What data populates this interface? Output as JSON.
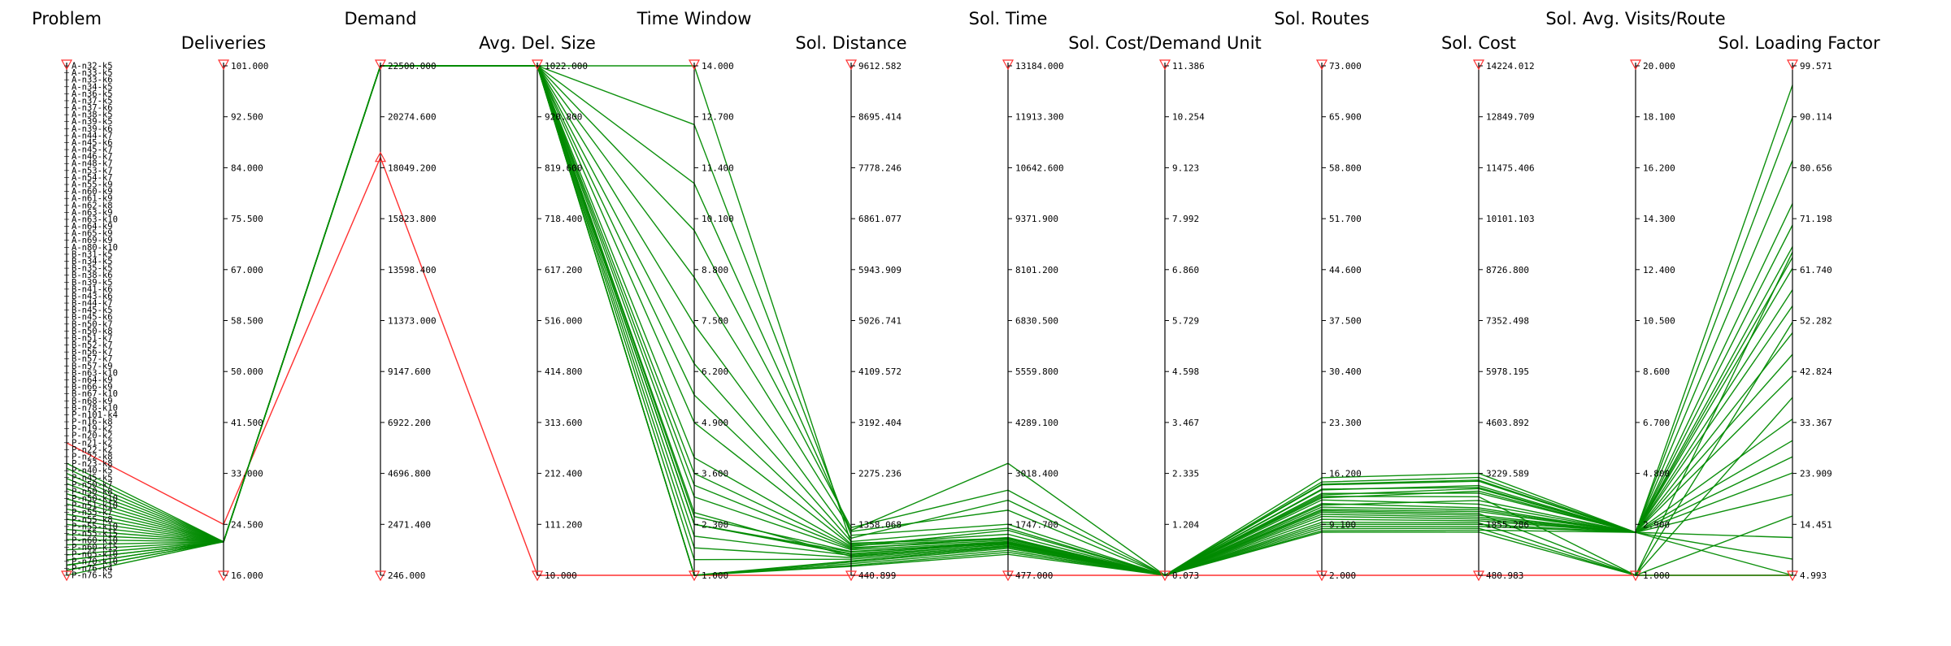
{
  "chart_data": {
    "type": "parallel_coordinates",
    "colors": {
      "selected": "#008a00",
      "filter": "#ff3030",
      "axis": "#000000"
    },
    "axes": [
      {
        "title": "Problem",
        "ticks": [],
        "categorical": true
      },
      {
        "title": "Deliveries",
        "ticks": [
          "101.000",
          "92.500",
          "84.000",
          "75.500",
          "67.000",
          "58.500",
          "50.000",
          "41.500",
          "33.000",
          "24.500",
          "16.000"
        ],
        "min": 16,
        "max": 101
      },
      {
        "title": "Demand",
        "ticks": [
          "22500.000",
          "20274.600",
          "18049.200",
          "15823.800",
          "13598.400",
          "11373.000",
          "9147.600",
          "6922.200",
          "4696.800",
          "2471.400",
          "246.000"
        ],
        "min": 246,
        "max": 22500
      },
      {
        "title": "Avg. Del. Size",
        "ticks": [
          "1022.000",
          "920.800",
          "819.600",
          "718.400",
          "617.200",
          "516.000",
          "414.800",
          "313.600",
          "212.400",
          "111.200",
          "10.000"
        ],
        "min": 10,
        "max": 1022
      },
      {
        "title": "Time Window",
        "ticks": [
          "14.000",
          "12.700",
          "11.400",
          "10.100",
          "8.800",
          "7.500",
          "6.200",
          "4.900",
          "3.600",
          "2.300",
          "1.000"
        ],
        "min": 1,
        "max": 14
      },
      {
        "title": "Sol. Distance",
        "ticks": [
          "9612.582",
          "8695.414",
          "7778.246",
          "6861.077",
          "5943.909",
          "5026.741",
          "4109.572",
          "3192.404",
          "2275.236",
          "1358.068",
          "440.899"
        ],
        "min": 440.899,
        "max": 9612.582
      },
      {
        "title": "Sol. Time",
        "ticks": [
          "13184.000",
          "11913.300",
          "10642.600",
          "9371.900",
          "8101.200",
          "6830.500",
          "5559.800",
          "4289.100",
          "3018.400",
          "1747.700",
          "477.000"
        ],
        "min": 477,
        "max": 13184
      },
      {
        "title": "Sol. Cost/Demand Unit",
        "ticks": [
          "11.386",
          "10.254",
          "9.123",
          "7.992",
          "6.860",
          "5.729",
          "4.598",
          "3.467",
          "2.335",
          "1.204",
          "0.073"
        ],
        "min": 0.073,
        "max": 11.386
      },
      {
        "title": "Sol. Routes",
        "ticks": [
          "73.000",
          "65.900",
          "58.800",
          "51.700",
          "44.600",
          "37.500",
          "30.400",
          "23.300",
          "16.200",
          "9.100",
          "2.000"
        ],
        "min": 2,
        "max": 73
      },
      {
        "title": "Sol. Cost",
        "ticks": [
          "14224.012",
          "12849.709",
          "11475.406",
          "10101.103",
          "8726.800",
          "7352.498",
          "5978.195",
          "4603.892",
          "3229.589",
          "1855.286",
          "480.983"
        ],
        "min": 480.983,
        "max": 14224.012
      },
      {
        "title": "Sol. Avg. Visits/Route",
        "ticks": [
          "20.000",
          "18.100",
          "16.200",
          "14.300",
          "12.400",
          "10.500",
          "8.600",
          "6.700",
          "4.800",
          "2.900",
          "1.000"
        ],
        "min": 1,
        "max": 20
      },
      {
        "title": "Sol. Loading Factor",
        "ticks": [
          "99.571",
          "90.114",
          "80.656",
          "71.198",
          "61.740",
          "52.282",
          "42.824",
          "33.367",
          "23.909",
          "14.451",
          "4.993"
        ],
        "min": 4.993,
        "max": 99.571
      }
    ],
    "problems": [
      "A-n32-k5",
      "A-n33-k5",
      "A-n33-k6",
      "A-n34-k5",
      "A-n36-k5",
      "A-n37-k5",
      "A-n37-k6",
      "A-n38-k5",
      "A-n39-k5",
      "A-n39-k6",
      "A-n44-k7",
      "A-n45-k6",
      "A-n45-k7",
      "A-n46-k7",
      "A-n48-k7",
      "A-n53-k7",
      "A-n54-k7",
      "A-n55-k9",
      "A-n60-k9",
      "A-n61-k9",
      "A-n62-k8",
      "A-n63-k9",
      "A-n63-k10",
      "A-n64-k9",
      "A-n65-k9",
      "A-n69-k9",
      "A-n80-k10",
      "B-n31-k5",
      "B-n34-k5",
      "B-n35-k5",
      "B-n38-k6",
      "B-n39-k5",
      "B-n41-k6",
      "B-n43-k6",
      "B-n44-k7",
      "B-n45-k5",
      "B-n45-k6",
      "B-n50-k7",
      "B-n50-k8",
      "B-n51-k7",
      "B-n52-k7",
      "B-n56-k7",
      "B-n57-k7",
      "B-n57-k9",
      "B-n63-k10",
      "B-n64-k9",
      "B-n66-k9",
      "B-n67-k10",
      "B-n68-k9",
      "B-n78-k10",
      "P-n101-k4",
      "P-n16-k8",
      "P-n19-k2",
      "P-n20-k2",
      "P-n21-k2",
      "P-n22-k2",
      "P-n22-k8",
      "P-n23-k8",
      "P-n40-k5",
      "P-n45-k5",
      "P-n50-k7",
      "P-n50-k8",
      "P-n50-k10",
      "P-n51-k10",
      "P-n55-k7",
      "P-n55-k8",
      "P-n55-k10",
      "P-n55-k15",
      "P-n60-k10",
      "P-n60-k15",
      "P-n65-k10",
      "P-n70-k10",
      "P-n76-k4",
      "P-n76-k5"
    ],
    "filters": [
      {
        "axis": 2,
        "range": [
          246,
          18500
        ]
      }
    ],
    "series_filtered_out": [
      [
        0.74,
        24.5,
        18500,
        10,
        1,
        440.899,
        477,
        0.073,
        2,
        480.983,
        1,
        4.993
      ]
    ],
    "series": [
      [
        0.78,
        21.6,
        22500,
        1022,
        14.0,
        1020,
        1400,
        0.073,
        13.4,
        2700,
        2.6,
        62
      ],
      [
        0.79,
        21.6,
        22500,
        1022,
        12.5,
        1160,
        1750,
        0.073,
        14.0,
        2850,
        2.6,
        66
      ],
      [
        0.8,
        21.6,
        22500,
        1022,
        11.0,
        1230,
        2100,
        0.073,
        14.6,
        3020,
        2.6,
        70
      ],
      [
        0.81,
        21.6,
        22500,
        1022,
        9.8,
        1300,
        2600,
        0.073,
        15.0,
        3120,
        2.6,
        74
      ],
      [
        0.82,
        21.6,
        22500,
        1022,
        8.6,
        1250,
        3270,
        0.073,
        15.6,
        3230,
        2.6,
        82
      ],
      [
        0.83,
        21.6,
        22500,
        1022,
        7.4,
        1110,
        2350,
        0.073,
        14.7,
        3050,
        2.6,
        90
      ],
      [
        0.84,
        21.6,
        22500,
        1022,
        6.4,
        1050,
        1650,
        0.073,
        13.9,
        2900,
        2.6,
        96
      ],
      [
        0.85,
        21.6,
        22500,
        1022,
        5.6,
        1000,
        1500,
        0.073,
        13.0,
        2600,
        1.0,
        65
      ],
      [
        0.86,
        21.6,
        22500,
        1022,
        4.9,
        980,
        1380,
        0.073,
        12.5,
        2400,
        2.6,
        64
      ],
      [
        0.87,
        21.6,
        22500,
        1022,
        3.6,
        940,
        1350,
        0.073,
        12.0,
        2300,
        2.6,
        58
      ],
      [
        0.88,
        21.6,
        22500,
        1022,
        3.0,
        900,
        1320,
        0.073,
        11.5,
        2250,
        2.6,
        55
      ],
      [
        0.89,
        21.6,
        22500,
        1022,
        2.5,
        870,
        1300,
        0.073,
        11.0,
        2150,
        1.0,
        52
      ],
      [
        0.9,
        21.6,
        22500,
        1022,
        2.3,
        830,
        1280,
        0.073,
        10.5,
        2050,
        2.6,
        50
      ],
      [
        0.91,
        21.6,
        22500,
        1022,
        2.0,
        800,
        1250,
        0.073,
        10.2,
        2000,
        2.6,
        46
      ],
      [
        0.92,
        21.6,
        22500,
        1022,
        1.7,
        760,
        1220,
        0.073,
        9.8,
        1950,
        2.6,
        42
      ],
      [
        0.93,
        21.6,
        22500,
        1022,
        1.4,
        730,
        1200,
        0.073,
        9.4,
        1900,
        1.0,
        38
      ],
      [
        0.94,
        21.6,
        22500,
        1022,
        1.0,
        700,
        1180,
        0.073,
        9.1,
        1855,
        2.6,
        34
      ],
      [
        0.95,
        21.6,
        22500,
        1022,
        1.0,
        680,
        1150,
        0.073,
        8.8,
        1800,
        2.6,
        30
      ],
      [
        0.96,
        21.6,
        22500,
        1022,
        2.3,
        860,
        1290,
        0.073,
        11.8,
        2500,
        2.6,
        27
      ],
      [
        0.97,
        21.6,
        22500,
        1022,
        3.3,
        920,
        1420,
        0.073,
        12.8,
        2750,
        2.6,
        24
      ],
      [
        0.97,
        21.6,
        22500,
        1022,
        4.0,
        960,
        1600,
        0.073,
        13.2,
        2820,
        2.6,
        20
      ],
      [
        0.98,
        21.6,
        22500,
        1022,
        1.0,
        650,
        1100,
        0.073,
        8.5,
        1750,
        1.0,
        16
      ],
      [
        0.98,
        21.6,
        22500,
        1022,
        2.6,
        780,
        1260,
        0.073,
        10.8,
        2100,
        2.6,
        12
      ],
      [
        0.99,
        21.6,
        22500,
        1022,
        1.0,
        620,
        1050,
        0.073,
        8.2,
        1700,
        2.6,
        8
      ],
      [
        0.99,
        21.6,
        22500,
        1022,
        2.3,
        820,
        1300,
        0.073,
        11.2,
        2200,
        2.6,
        5
      ],
      [
        1.0,
        21.6,
        22500,
        1022,
        1.0,
        600,
        1000,
        0.073,
        8.0,
        1650,
        1.0,
        5
      ]
    ]
  }
}
